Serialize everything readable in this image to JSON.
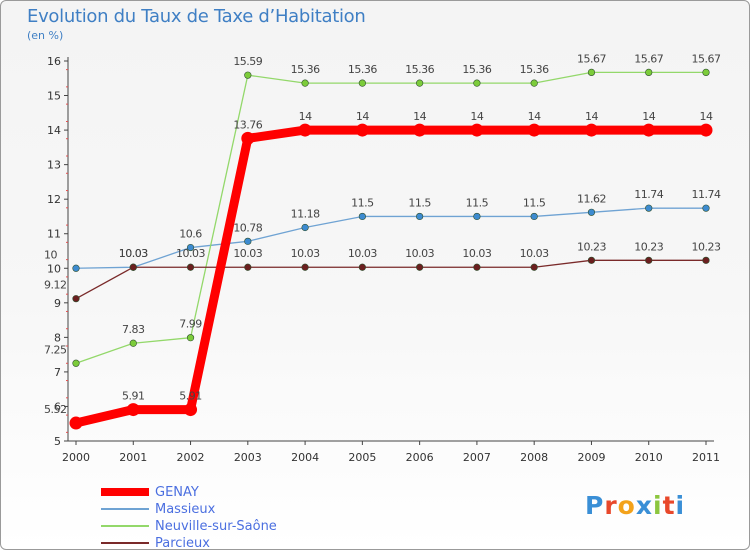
{
  "header": {
    "title": "Evolution du Taux de Taxe d’Habitation",
    "unit": "(en %)"
  },
  "logo": {
    "text": "Proxiti",
    "colors": [
      "#3a8fd6",
      "#e8482b",
      "#f3a21b",
      "#3a8fd6",
      "#8cc63f",
      "#e8482b",
      "#3a8fd6"
    ]
  },
  "chart_data": {
    "type": "line",
    "title": "Evolution du Taux de Taxe d’Habitation",
    "ylabel": "(en %)",
    "xlabel": "",
    "x": [
      "2000",
      "2001",
      "2002",
      "2003",
      "2004",
      "2005",
      "2006",
      "2007",
      "2008",
      "2009",
      "2010",
      "2011"
    ],
    "ylim": [
      5,
      16
    ],
    "yticks": [
      5,
      6,
      7,
      8,
      9,
      10,
      11,
      12,
      13,
      14,
      15,
      16
    ],
    "grid": false,
    "legend": "bottom-left",
    "series": [
      {
        "name": "Massieux",
        "color": "#6fa3d3",
        "marker": "#3d8bd0",
        "values": [
          10,
          10.03,
          10.6,
          10.78,
          11.18,
          11.5,
          11.5,
          11.5,
          11.5,
          11.62,
          11.74,
          11.74
        ],
        "labels": [
          "10",
          "10.03",
          "10.6",
          "10.78",
          "11.18",
          "11.5",
          "11.5",
          "11.5",
          "11.5",
          "11.62",
          "11.74",
          "11.74"
        ]
      },
      {
        "name": "Neuville-sur-Saône",
        "color": "#93d86a",
        "marker": "#7ccc3a",
        "values": [
          7.25,
          7.83,
          7.99,
          15.59,
          15.36,
          15.36,
          15.36,
          15.36,
          15.36,
          15.67,
          15.67,
          15.67
        ],
        "labels": [
          "7.25",
          "7.83",
          "7.99",
          "15.59",
          "15.36",
          "15.36",
          "15.36",
          "15.36",
          "15.36",
          "15.67",
          "15.67",
          "15.67"
        ]
      },
      {
        "name": "Parcieux",
        "color": "#7a2a2a",
        "marker": "#6b1f1f",
        "values": [
          9.12,
          10.03,
          10.03,
          10.03,
          10.03,
          10.03,
          10.03,
          10.03,
          10.03,
          10.23,
          10.23,
          10.23
        ],
        "labels": [
          "9.12",
          "10.03",
          "10.03",
          "10.03",
          "10.03",
          "10.03",
          "10.03",
          "10.03",
          "10.03",
          "10.23",
          "10.23",
          "10.23"
        ]
      },
      {
        "name": "GENAY",
        "color": "#ff0000",
        "marker": "#ff0000",
        "emphasis": true,
        "values": [
          5.52,
          5.91,
          5.91,
          13.76,
          14,
          14,
          14,
          14,
          14,
          14,
          14,
          14
        ],
        "labels": [
          "5.52",
          "5.91",
          "5.91",
          "13.76",
          "14",
          "14",
          "14",
          "14",
          "14",
          "14",
          "14",
          "14"
        ]
      }
    ],
    "legend_order": [
      "GENAY",
      "Massieux",
      "Neuville-sur-Saône",
      "Parcieux"
    ]
  }
}
